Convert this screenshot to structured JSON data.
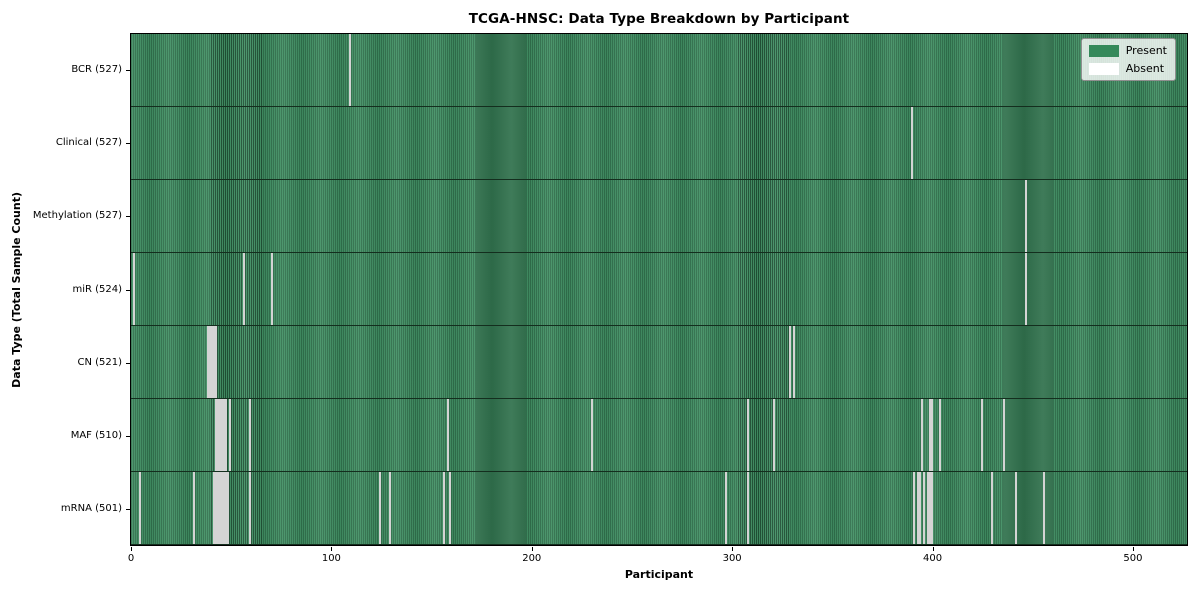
{
  "title": "TCGA-HNSC: Data Type Breakdown by Participant",
  "chart_data": {
    "type": "heatmap",
    "title": "TCGA-HNSC: Data Type Breakdown by Participant",
    "xlabel": "Participant",
    "ylabel": "Data Type (Total Sample Count)",
    "x_ticks": [
      0,
      100,
      200,
      300,
      400,
      500
    ],
    "n_participants": 528,
    "x_range": [
      0,
      528
    ],
    "grid": false,
    "legend": {
      "position": "upper right",
      "entries": [
        {
          "label": "Present",
          "color": "#35895a"
        },
        {
          "label": "Absent",
          "color": "#ffffff"
        }
      ]
    },
    "colors": {
      "present": "#35895a",
      "present_edge": "#1e5c39",
      "absent": "#ffffff",
      "figure_background": "#ffffff",
      "text": "#000000"
    },
    "rows": [
      {
        "label": "BCR (527)",
        "data_type": "BCR",
        "present_count": 527,
        "absent_participants": [
          109
        ]
      },
      {
        "label": "Clinical (527)",
        "data_type": "Clinical",
        "present_count": 527,
        "absent_participants": [
          390
        ]
      },
      {
        "label": "Methylation (527)",
        "data_type": "Methylation",
        "present_count": 527,
        "absent_participants": [
          447
        ]
      },
      {
        "label": "miR (524)",
        "data_type": "miR",
        "present_count": 524,
        "absent_participants": [
          1,
          56,
          70,
          447
        ]
      },
      {
        "label": "CN (521)",
        "data_type": "CN",
        "present_count": 521,
        "absent_participants": [
          38,
          39,
          40,
          41,
          42,
          329,
          331
        ]
      },
      {
        "label": "MAF (510)",
        "data_type": "MAF",
        "present_count": 510,
        "absent_participants": [
          42,
          43,
          44,
          45,
          46,
          47,
          49,
          59,
          158,
          230,
          308,
          321,
          395,
          399,
          400,
          404,
          425,
          436
        ]
      },
      {
        "label": "mRNA (501)",
        "data_type": "mRNA",
        "present_count": 501,
        "absent_participants": [
          4,
          31,
          41,
          42,
          43,
          44,
          45,
          46,
          47,
          48,
          59,
          124,
          129,
          156,
          159,
          297,
          308,
          391,
          393,
          394,
          396,
          398,
          399,
          400,
          430,
          442,
          456
        ]
      }
    ]
  }
}
